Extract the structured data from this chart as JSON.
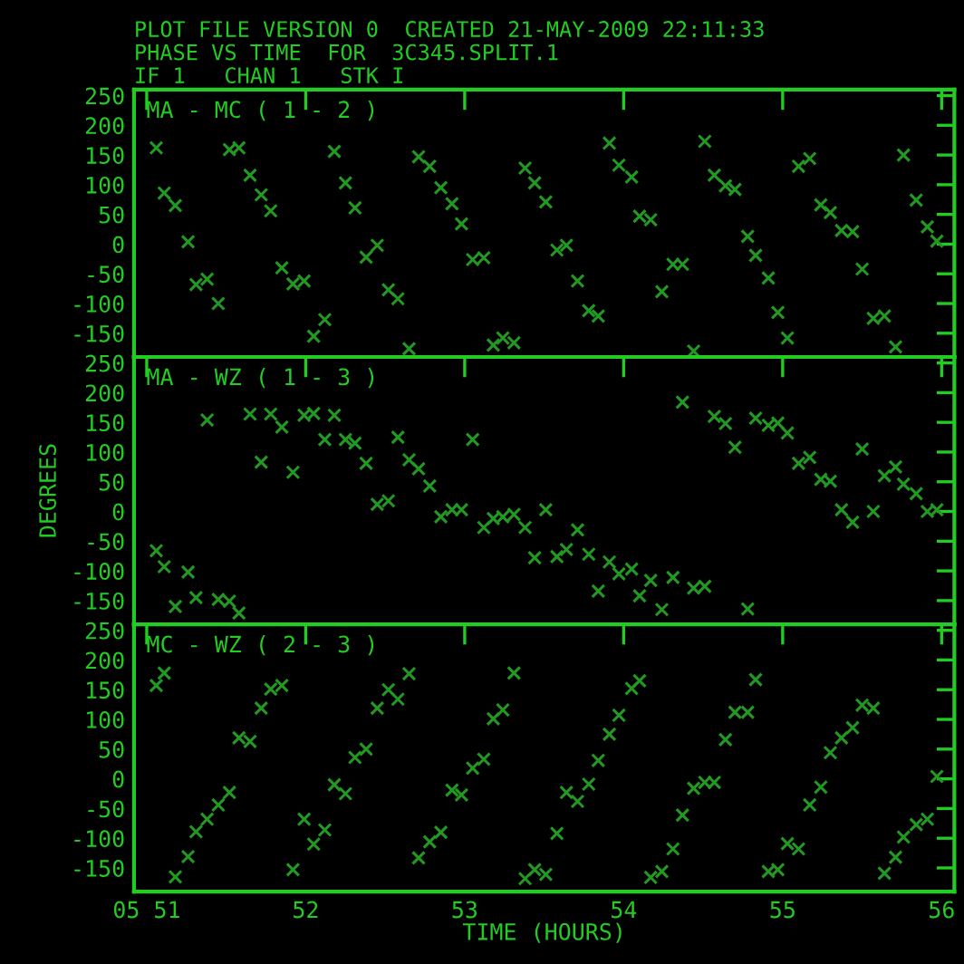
{
  "chart_data": [
    {
      "type": "scatter",
      "title": "MA - MC ( 1 - 2 )",
      "annotations": [
        "PLOT FILE VERSION 0  CREATED 21-MAY-2009 22:11:33",
        "PHASE VS TIME  FOR  3C345.SPLIT.1",
        "IF 1   CHAN 1   STK I"
      ],
      "x": [
        51.06,
        51.11,
        51.18,
        51.26,
        51.31,
        51.38,
        51.45,
        51.52,
        51.58,
        51.65,
        51.72,
        51.78,
        51.85,
        51.92,
        51.99,
        52.05,
        52.12,
        52.18,
        52.25,
        52.31,
        52.38,
        52.45,
        52.52,
        52.58,
        52.65,
        52.71,
        52.78,
        52.85,
        52.92,
        52.98,
        53.05,
        53.12,
        53.18,
        53.24,
        53.31,
        53.38,
        53.44,
        53.51,
        53.58,
        53.64,
        53.71,
        53.78,
        53.84,
        53.91,
        53.97,
        54.05,
        54.1,
        54.17,
        54.24,
        54.31,
        54.37,
        54.44,
        54.51,
        54.57,
        54.64,
        54.7,
        54.78,
        54.83,
        54.91,
        54.97,
        55.03,
        55.1,
        55.17,
        55.24,
        55.3,
        55.37,
        55.44,
        55.5,
        55.57,
        55.64,
        55.71,
        55.76,
        55.84,
        55.91,
        55.97
      ],
      "values": [
        162,
        86,
        65,
        4,
        -68,
        -59,
        -100,
        159,
        162,
        116,
        83,
        56,
        -40,
        -67,
        -62,
        -155,
        -127,
        156,
        103,
        61,
        -22,
        -2,
        -77,
        -92,
        -176,
        147,
        131,
        95,
        68,
        34,
        -26,
        -23,
        -170,
        -158,
        -166,
        128,
        103,
        71,
        -10,
        -2,
        -62,
        -112,
        -121,
        170,
        133,
        113,
        47,
        41,
        -80,
        -34,
        -34,
        -180,
        173,
        116,
        98,
        92,
        13,
        -19,
        -57,
        -115,
        -158,
        131,
        144,
        66,
        53,
        23,
        21,
        -42,
        -125,
        -121,
        -173,
        150,
        74,
        29,
        5
      ],
      "color": "#229922",
      "marker": "cross",
      "xlim": [
        50.92,
        56.08
      ],
      "ylim": [
        -190,
        260
      ],
      "xticks": [
        51,
        52,
        53,
        54,
        55,
        56
      ],
      "yticks": [
        -150,
        -100,
        -50,
        0,
        50,
        100,
        150,
        200,
        250
      ],
      "tick_labels": "y"
    },
    {
      "type": "scatter",
      "title": "MA - WZ ( 1 - 3 )",
      "ylabel": "DEGREES",
      "x": [
        51.06,
        51.11,
        51.18,
        51.26,
        51.31,
        51.38,
        51.45,
        51.52,
        51.58,
        51.65,
        51.72,
        51.78,
        51.85,
        51.92,
        51.99,
        52.05,
        52.12,
        52.18,
        52.25,
        52.31,
        52.38,
        52.45,
        52.52,
        52.58,
        52.65,
        52.71,
        52.78,
        52.85,
        52.92,
        52.98,
        53.05,
        53.12,
        53.18,
        53.24,
        53.31,
        53.38,
        53.44,
        53.51,
        53.58,
        53.64,
        53.71,
        53.78,
        53.84,
        53.91,
        53.97,
        54.05,
        54.1,
        54.17,
        54.24,
        54.31,
        54.37,
        54.44,
        54.51,
        54.57,
        54.64,
        54.7,
        54.78,
        54.83,
        54.91,
        54.97,
        55.03,
        55.1,
        55.17,
        55.24,
        55.3,
        55.37,
        55.44,
        55.5,
        55.57,
        55.64,
        55.71,
        55.76,
        55.84,
        55.91,
        55.97
      ],
      "values": [
        -66,
        -93,
        -160,
        -102,
        -145,
        154,
        -148,
        -151,
        -171,
        164,
        83,
        164,
        142,
        66,
        162,
        165,
        121,
        162,
        121,
        115,
        81,
        12,
        18,
        125,
        87,
        72,
        43,
        -9,
        3,
        3,
        121,
        -27,
        -12,
        -9,
        -5,
        -27,
        -78,
        3,
        -76,
        -64,
        -31,
        -72,
        -134,
        -85,
        -105,
        -97,
        -142,
        -116,
        -165,
        -111,
        184,
        -129,
        -126,
        160,
        148,
        108,
        -164,
        157,
        145,
        149,
        132,
        81,
        91,
        54,
        51,
        3,
        -18,
        105,
        0,
        60,
        75,
        46,
        30,
        0,
        3
      ],
      "color": "#229922",
      "marker": "cross",
      "xlim": [
        50.92,
        56.08
      ],
      "ylim": [
        -190,
        260
      ],
      "xticks": [
        51,
        52,
        53,
        54,
        55,
        56
      ],
      "yticks": [
        -150,
        -100,
        -50,
        0,
        50,
        100,
        150,
        200,
        250
      ],
      "tick_labels": "y"
    },
    {
      "type": "scatter",
      "title": "MC - WZ ( 2 - 3 )",
      "xlabel": "TIME (HOURS)",
      "x": [
        51.06,
        51.11,
        51.18,
        51.26,
        51.31,
        51.38,
        51.45,
        51.52,
        51.58,
        51.65,
        51.72,
        51.78,
        51.85,
        51.92,
        51.99,
        52.05,
        52.12,
        52.18,
        52.25,
        52.31,
        52.38,
        52.45,
        52.52,
        52.58,
        52.65,
        52.71,
        52.78,
        52.85,
        52.92,
        52.98,
        53.05,
        53.12,
        53.18,
        53.24,
        53.31,
        53.38,
        53.44,
        53.51,
        53.58,
        53.64,
        53.71,
        53.78,
        53.84,
        53.91,
        53.97,
        54.05,
        54.1,
        54.17,
        54.24,
        54.31,
        54.37,
        54.44,
        54.51,
        54.57,
        54.64,
        54.7,
        54.78,
        54.83,
        54.91,
        54.97,
        55.03,
        55.1,
        55.17,
        55.24,
        55.3,
        55.37,
        55.44,
        55.5,
        55.57,
        55.64,
        55.71,
        55.76,
        55.84,
        55.91,
        55.97
      ],
      "values": [
        157,
        178,
        -165,
        -131,
        -89,
        -68,
        -44,
        -23,
        69,
        63,
        119,
        151,
        157,
        -153,
        -68,
        -110,
        -86,
        -10,
        -25,
        36,
        50,
        119,
        150,
        134,
        177,
        -133,
        -106,
        -90,
        -19,
        -27,
        18,
        33,
        101,
        116,
        178,
        -168,
        -153,
        -161,
        -92,
        -23,
        -38,
        -9,
        31,
        75,
        107,
        152,
        165,
        -166,
        -156,
        -118,
        -61,
        -16,
        -6,
        -6,
        66,
        112,
        112,
        167,
        -156,
        -153,
        -109,
        -118,
        -44,
        -14,
        44,
        69,
        86,
        124,
        119,
        -159,
        -132,
        -98,
        -77,
        -68,
        4
      ],
      "color": "#229922",
      "marker": "cross",
      "xlim": [
        50.92,
        56.08
      ],
      "ylim": [
        -190,
        260
      ],
      "xticks": [
        {
          "value": 51,
          "label": "05 51"
        },
        52,
        53,
        54,
        55,
        56
      ],
      "yticks": [
        -150,
        -100,
        -50,
        0,
        50,
        100,
        150,
        200,
        250
      ]
    }
  ]
}
